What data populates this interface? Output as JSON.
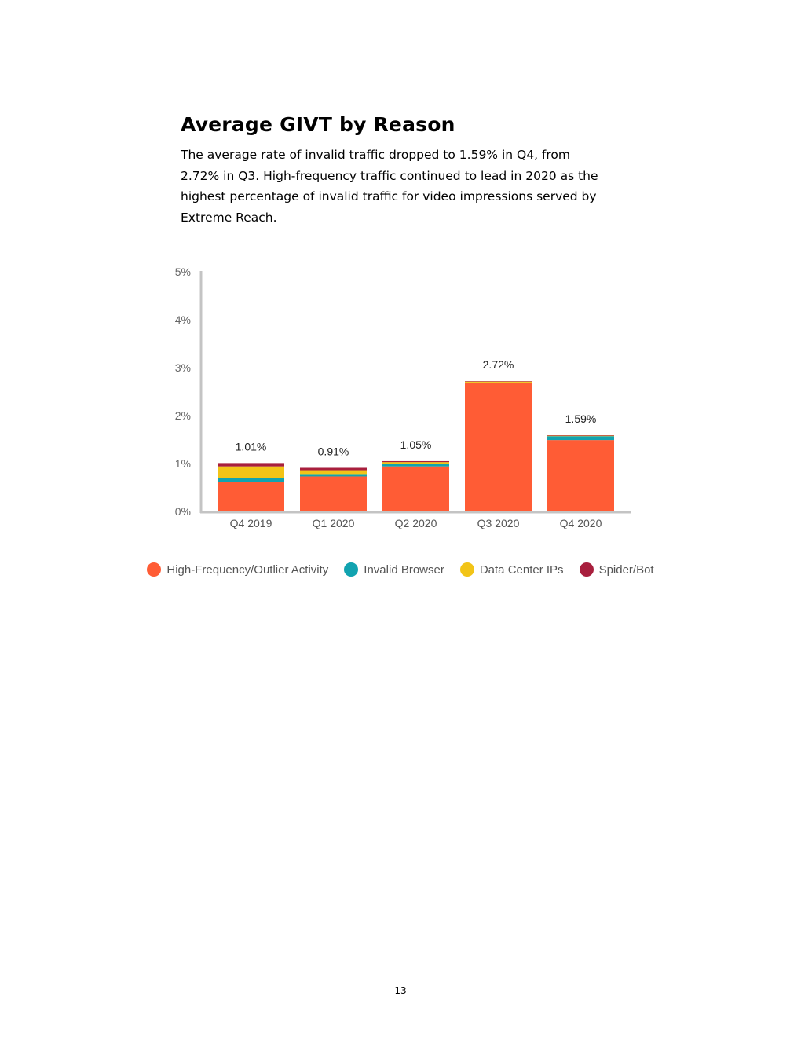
{
  "heading": "Average GIVT by Reason",
  "description": "The average rate of invalid traffic dropped to 1.59% in Q4, from 2.72% in Q3. High-frequency traffic continued to lead in 2020 as the highest percentage of invalid traffic for video impressions served by Extreme Reach.",
  "page_number": "13",
  "chart_data": {
    "type": "bar",
    "stacked": true,
    "categories": [
      "Q4 2019",
      "Q1 2020",
      "Q2 2020",
      "Q3 2020",
      "Q4 2020"
    ],
    "series": [
      {
        "name": "High-Frequency/Outlier Activity",
        "color": "#FF5C35",
        "values": [
          0.62,
          0.73,
          0.94,
          2.68,
          1.49
        ]
      },
      {
        "name": "Invalid Browser",
        "color": "#12A3B0",
        "values": [
          0.07,
          0.05,
          0.05,
          0.01,
          0.08
        ]
      },
      {
        "name": "Data Center IPs",
        "color": "#F2C417",
        "values": [
          0.25,
          0.08,
          0.04,
          0.02,
          0.01
        ]
      },
      {
        "name": "Spider/Bot",
        "color": "#A81F3D",
        "values": [
          0.07,
          0.05,
          0.02,
          0.01,
          0.01
        ]
      }
    ],
    "totals": [
      "1.01%",
      "0.91%",
      "1.05%",
      "2.72%",
      "1.59%"
    ],
    "yticks": [
      "0%",
      "1%",
      "2%",
      "3%",
      "4%",
      "5%"
    ],
    "ylim": [
      0,
      5
    ],
    "legend_position": "bottom",
    "grid": false
  }
}
